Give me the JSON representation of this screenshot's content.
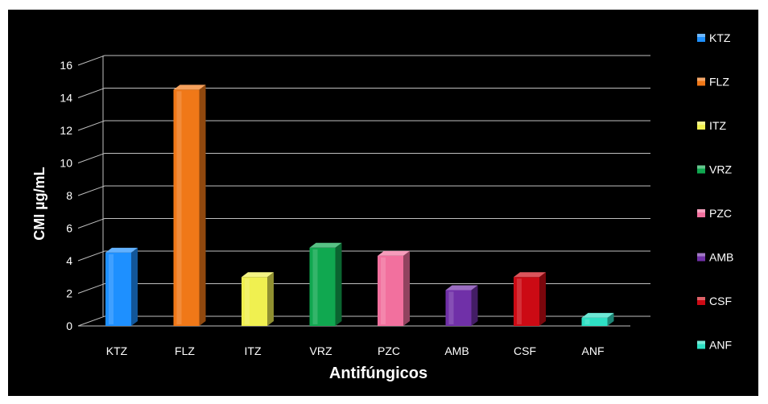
{
  "chart_data": {
    "type": "bar",
    "categories": [
      "KTZ",
      "FLZ",
      "ITZ",
      "VRZ",
      "PZC",
      "AMB",
      "CSF",
      "ANF"
    ],
    "values": [
      4.5,
      14.5,
      3.0,
      4.8,
      4.3,
      2.2,
      3.0,
      0.5
    ],
    "title": "",
    "xlabel": "Antifúngicos",
    "ylabel": "CMI µg/mL",
    "ylim": [
      0,
      16
    ],
    "yticks": [
      "0",
      "2",
      "4",
      "6",
      "8",
      "10",
      "12",
      "14",
      "16"
    ],
    "grid": true,
    "legend_position": "right",
    "legend": [
      "KTZ",
      "FLZ",
      "ITZ",
      "VRZ",
      "PZC",
      "AMB",
      "CSF",
      "ANF"
    ],
    "colors": [
      "#1e90ff",
      "#f07818",
      "#f0f050",
      "#10a850",
      "#f2709e",
      "#7030a8",
      "#cc0a14",
      "#2ee0c4"
    ],
    "background": "#000000",
    "text_color": "#ffffff"
  }
}
